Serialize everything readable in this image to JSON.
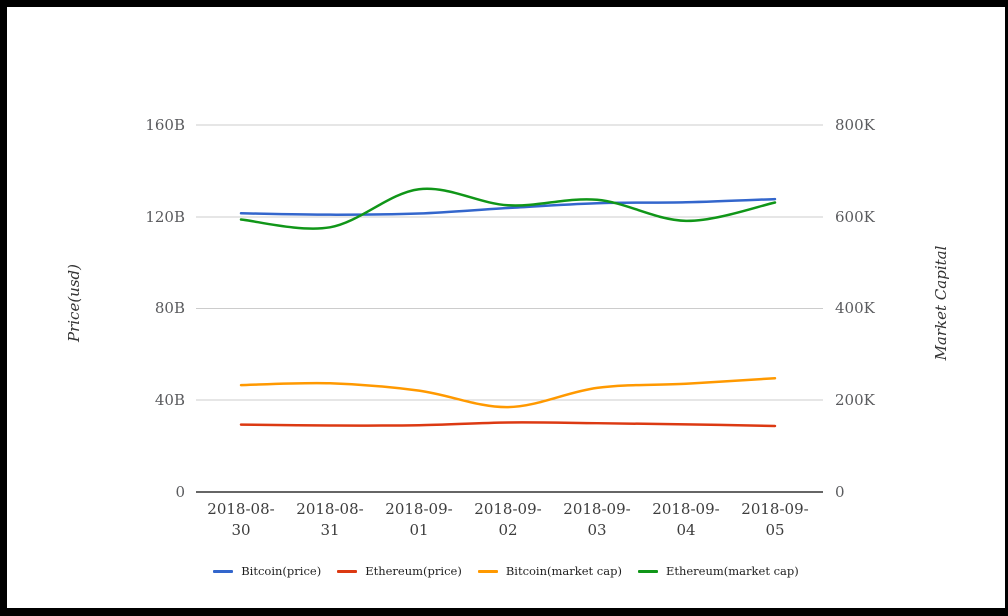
{
  "chart_data": {
    "type": "line",
    "categories": [
      "2018-08-30",
      "2018-08-31",
      "2018-09-01",
      "2018-09-02",
      "2018-09-03",
      "2018-09-04",
      "2018-09-05"
    ],
    "series": [
      {
        "name": "Bitcoin(price)",
        "color": "#3366cc",
        "axis": "left",
        "values": [
          121.5,
          120.9,
          121.4,
          123.8,
          125.9,
          126.3,
          127.7
        ]
      },
      {
        "name": "Ethereum(price)",
        "color": "#dc3912",
        "axis": "left",
        "values": [
          29.4,
          29.0,
          29.1,
          30.3,
          30.0,
          29.5,
          28.8
        ]
      },
      {
        "name": "Bitcoin(market cap)",
        "color": "#ff9900",
        "axis": "right",
        "values": [
          233,
          237,
          221,
          185,
          227,
          236,
          248
        ]
      },
      {
        "name": "Ethereum(market cap)",
        "color": "#109618",
        "axis": "right",
        "values": [
          594,
          577,
          660,
          625,
          637,
          591,
          631
        ]
      }
    ],
    "left_axis": {
      "title": "Price(usd)",
      "ticks": [
        "0",
        "40B",
        "80B",
        "120B",
        "160B"
      ],
      "range": [
        0,
        160
      ]
    },
    "right_axis": {
      "title": "Market Capital",
      "ticks": [
        "0",
        "200K",
        "400K",
        "600K",
        "800K"
      ],
      "range": [
        0,
        800
      ]
    },
    "grid": true,
    "legend_position": "bottom",
    "smoothing": "curved"
  },
  "colors": {
    "gridline": "#cccccc",
    "axis_line": "#333333",
    "tick_text": "#5a5b5e",
    "xlabel_text": "#3d3d3d",
    "frame": "#000000",
    "background": "#ffffff"
  }
}
